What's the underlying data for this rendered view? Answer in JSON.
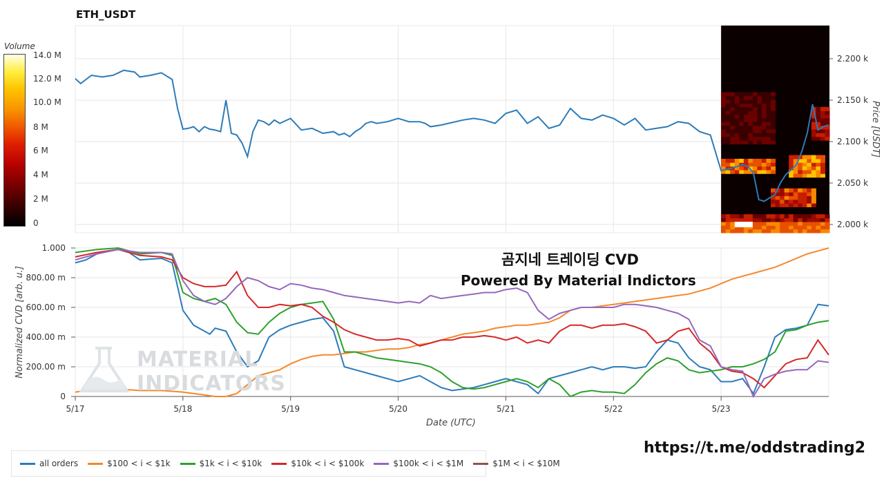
{
  "title": "ETH_USDT",
  "colorbar": {
    "title": "Volume",
    "ticks": [
      "14.0 M",
      "12.0 M",
      "10.0 M",
      "8 M",
      "6 M",
      "4 M",
      "2 M",
      "0"
    ]
  },
  "watermark": {
    "line1": "MATERIAL",
    "line2": "INDICATORS"
  },
  "branding": {
    "line1": "곰지네 트레이딩 CVD",
    "line2": "Powered By Material Indictors"
  },
  "url": "https://t.me/oddstrading2",
  "chart_data": [
    {
      "type": "line",
      "title": "ETH_USDT",
      "ylabel": "Price [USDT]",
      "ylim": [
        1990,
        2240
      ],
      "yticks": [
        2000,
        2050,
        2100,
        2150,
        2200
      ],
      "ytick_labels": [
        "2.000 k",
        "2.050 k",
        "2.100 k",
        "2.150 k",
        "2.200 k"
      ],
      "xlim": [
        0,
        7
      ],
      "grid": true,
      "heatmap": {
        "type": "heatmap",
        "x_start": 6.0,
        "x_end": 7.0,
        "colorscale": "hot",
        "zlim": [
          0,
          14000000
        ]
      },
      "series": [
        {
          "name": "price",
          "color": "#2b7bb9",
          "x": [
            0,
            0.05,
            0.15,
            0.25,
            0.35,
            0.45,
            0.55,
            0.6,
            0.7,
            0.8,
            0.9,
            0.95,
            1.0,
            1.05,
            1.1,
            1.15,
            1.2,
            1.25,
            1.3,
            1.35,
            1.4,
            1.45,
            1.5,
            1.55,
            1.6,
            1.65,
            1.7,
            1.75,
            1.8,
            1.85,
            1.9,
            1.95,
            2.0,
            2.1,
            2.2,
            2.3,
            2.4,
            2.45,
            2.5,
            2.55,
            2.6,
            2.65,
            2.7,
            2.75,
            2.8,
            2.9,
            3.0,
            3.1,
            3.2,
            3.25,
            3.3,
            3.4,
            3.5,
            3.6,
            3.7,
            3.8,
            3.9,
            4.0,
            4.1,
            4.2,
            4.3,
            4.4,
            4.5,
            4.6,
            4.7,
            4.8,
            4.9,
            5.0,
            5.1,
            5.2,
            5.3,
            5.4,
            5.5,
            5.6,
            5.7,
            5.8,
            5.9,
            6.0,
            6.1,
            6.2,
            6.25,
            6.3,
            6.35,
            6.4,
            6.45,
            6.5,
            6.55,
            6.6,
            6.65,
            6.7,
            6.75,
            6.8,
            6.85,
            6.9,
            6.95,
            7.0
          ],
          "y": [
            2176,
            2170,
            2180,
            2178,
            2180,
            2186,
            2184,
            2178,
            2180,
            2183,
            2175,
            2140,
            2115,
            2116,
            2118,
            2112,
            2118,
            2115,
            2114,
            2112,
            2150,
            2110,
            2108,
            2098,
            2082,
            2112,
            2126,
            2124,
            2120,
            2126,
            2122,
            2125,
            2128,
            2114,
            2116,
            2110,
            2112,
            2108,
            2110,
            2106,
            2112,
            2116,
            2122,
            2124,
            2122,
            2124,
            2128,
            2124,
            2124,
            2122,
            2118,
            2120,
            2123,
            2126,
            2128,
            2126,
            2122,
            2134,
            2138,
            2122,
            2130,
            2116,
            2120,
            2140,
            2128,
            2126,
            2132,
            2128,
            2120,
            2128,
            2114,
            2116,
            2118,
            2124,
            2122,
            2112,
            2108,
            2065,
            2068,
            2072,
            2070,
            2062,
            2030,
            2028,
            2032,
            2036,
            2050,
            2060,
            2066,
            2072,
            2088,
            2110,
            2145,
            2114,
            2118,
            2120
          ]
        }
      ]
    },
    {
      "type": "line",
      "xlabel": "Date (UTC)",
      "ylabel": "Normalized CVD [arb. u.]",
      "ylim": [
        0,
        1
      ],
      "yticks": [
        0,
        0.2,
        0.4,
        0.6,
        0.8,
        1.0
      ],
      "ytick_labels": [
        "0",
        "200.00 m",
        "400.00 m",
        "600.00 m",
        "800.00 m",
        "1.000"
      ],
      "xlim": [
        0,
        7
      ],
      "categories": [
        "5/17",
        "5/18",
        "5/19",
        "5/20",
        "5/21",
        "5/22",
        "5/23"
      ],
      "grid": true,
      "legend": "bottom",
      "series": [
        {
          "name": "all orders",
          "color": "#2b7bb9",
          "x": [
            0,
            0.1,
            0.2,
            0.3,
            0.4,
            0.5,
            0.6,
            0.8,
            0.9,
            1.0,
            1.1,
            1.2,
            1.25,
            1.3,
            1.4,
            1.5,
            1.6,
            1.7,
            1.8,
            1.9,
            2.0,
            2.1,
            2.2,
            2.3,
            2.4,
            2.5,
            2.6,
            2.7,
            2.8,
            2.9,
            3.0,
            3.1,
            3.2,
            3.3,
            3.4,
            3.5,
            3.6,
            3.7,
            3.8,
            3.9,
            4.0,
            4.1,
            4.2,
            4.3,
            4.4,
            4.5,
            4.6,
            4.7,
            4.8,
            4.9,
            5.0,
            5.1,
            5.2,
            5.3,
            5.4,
            5.5,
            5.6,
            5.7,
            5.8,
            5.9,
            6.0,
            6.1,
            6.2,
            6.3,
            6.4,
            6.5,
            6.6,
            6.7,
            6.8,
            6.9,
            7.0
          ],
          "y": [
            0.9,
            0.92,
            0.96,
            0.98,
            0.99,
            0.97,
            0.92,
            0.93,
            0.9,
            0.58,
            0.48,
            0.44,
            0.42,
            0.46,
            0.44,
            0.3,
            0.2,
            0.24,
            0.4,
            0.45,
            0.48,
            0.5,
            0.52,
            0.53,
            0.44,
            0.2,
            0.18,
            0.16,
            0.14,
            0.12,
            0.1,
            0.12,
            0.14,
            0.1,
            0.06,
            0.04,
            0.05,
            0.06,
            0.08,
            0.1,
            0.12,
            0.1,
            0.08,
            0.02,
            0.12,
            0.14,
            0.16,
            0.18,
            0.2,
            0.18,
            0.2,
            0.2,
            0.19,
            0.2,
            0.3,
            0.38,
            0.36,
            0.26,
            0.2,
            0.18,
            0.1,
            0.1,
            0.12,
            0.02,
            0.2,
            0.4,
            0.45,
            0.46,
            0.48,
            0.62,
            0.61
          ]
        },
        {
          "name": "$100 < i < $1k",
          "color": "#f5872a",
          "x": [
            0,
            0.2,
            0.4,
            0.6,
            0.8,
            1.0,
            1.1,
            1.2,
            1.3,
            1.4,
            1.5,
            1.6,
            1.7,
            1.8,
            1.9,
            2.0,
            2.1,
            2.2,
            2.3,
            2.4,
            2.5,
            2.6,
            2.7,
            2.8,
            2.9,
            3.0,
            3.1,
            3.2,
            3.3,
            3.4,
            3.5,
            3.6,
            3.7,
            3.8,
            3.9,
            4.0,
            4.1,
            4.2,
            4.3,
            4.4,
            4.5,
            4.6,
            4.7,
            4.8,
            4.9,
            5.0,
            5.1,
            5.2,
            5.3,
            5.4,
            5.5,
            5.6,
            5.7,
            5.8,
            5.9,
            6.0,
            6.1,
            6.2,
            6.3,
            6.4,
            6.5,
            6.6,
            6.7,
            6.8,
            6.9,
            7.0
          ],
          "y": [
            0.03,
            0.05,
            0.05,
            0.04,
            0.04,
            0.03,
            0.02,
            0.01,
            0.0,
            0.0,
            0.02,
            0.08,
            0.14,
            0.16,
            0.18,
            0.22,
            0.25,
            0.27,
            0.28,
            0.28,
            0.29,
            0.3,
            0.3,
            0.31,
            0.32,
            0.32,
            0.33,
            0.35,
            0.36,
            0.38,
            0.4,
            0.42,
            0.43,
            0.44,
            0.46,
            0.47,
            0.48,
            0.48,
            0.49,
            0.5,
            0.53,
            0.58,
            0.6,
            0.6,
            0.61,
            0.62,
            0.63,
            0.64,
            0.65,
            0.66,
            0.67,
            0.68,
            0.69,
            0.71,
            0.73,
            0.76,
            0.79,
            0.81,
            0.83,
            0.85,
            0.87,
            0.9,
            0.93,
            0.96,
            0.98,
            1.0
          ]
        },
        {
          "name": "$1k < i < $10k",
          "color": "#2ca02c",
          "x": [
            0,
            0.2,
            0.4,
            0.6,
            0.8,
            0.9,
            1.0,
            1.1,
            1.2,
            1.3,
            1.4,
            1.5,
            1.6,
            1.7,
            1.8,
            1.9,
            2.0,
            2.1,
            2.2,
            2.3,
            2.4,
            2.5,
            2.6,
            2.7,
            2.8,
            2.9,
            3.0,
            3.1,
            3.2,
            3.3,
            3.4,
            3.5,
            3.6,
            3.7,
            3.8,
            3.9,
            4.0,
            4.1,
            4.2,
            4.3,
            4.4,
            4.5,
            4.6,
            4.7,
            4.8,
            4.9,
            5.0,
            5.1,
            5.2,
            5.3,
            5.4,
            5.5,
            5.6,
            5.7,
            5.8,
            5.9,
            6.0,
            6.1,
            6.2,
            6.3,
            6.4,
            6.5,
            6.6,
            6.7,
            6.8,
            6.9,
            7.0
          ],
          "y": [
            0.97,
            0.99,
            1.0,
            0.96,
            0.97,
            0.95,
            0.7,
            0.66,
            0.64,
            0.66,
            0.62,
            0.5,
            0.43,
            0.42,
            0.5,
            0.56,
            0.6,
            0.62,
            0.63,
            0.64,
            0.52,
            0.3,
            0.3,
            0.28,
            0.26,
            0.25,
            0.24,
            0.23,
            0.22,
            0.2,
            0.16,
            0.1,
            0.06,
            0.05,
            0.06,
            0.08,
            0.1,
            0.12,
            0.1,
            0.06,
            0.12,
            0.08,
            0.0,
            0.03,
            0.04,
            0.03,
            0.03,
            0.02,
            0.08,
            0.16,
            0.22,
            0.26,
            0.24,
            0.18,
            0.16,
            0.17,
            0.18,
            0.2,
            0.2,
            0.22,
            0.25,
            0.3,
            0.44,
            0.45,
            0.48,
            0.5,
            0.51
          ]
        },
        {
          "name": "$10k < i < $100k",
          "color": "#d62728",
          "x": [
            0,
            0.2,
            0.4,
            0.6,
            0.8,
            0.9,
            1.0,
            1.1,
            1.2,
            1.3,
            1.4,
            1.5,
            1.6,
            1.7,
            1.8,
            1.9,
            2.0,
            2.1,
            2.2,
            2.3,
            2.4,
            2.5,
            2.6,
            2.7,
            2.8,
            2.9,
            3.0,
            3.1,
            3.2,
            3.3,
            3.4,
            3.5,
            3.6,
            3.7,
            3.8,
            3.9,
            4.0,
            4.1,
            4.2,
            4.3,
            4.4,
            4.5,
            4.6,
            4.7,
            4.8,
            4.9,
            5.0,
            5.1,
            5.2,
            5.3,
            5.4,
            5.5,
            5.6,
            5.7,
            5.8,
            5.9,
            6.0,
            6.1,
            6.2,
            6.3,
            6.4,
            6.5,
            6.6,
            6.7,
            6.8,
            6.9,
            7.0
          ],
          "y": [
            0.94,
            0.97,
            0.99,
            0.95,
            0.94,
            0.92,
            0.8,
            0.76,
            0.74,
            0.74,
            0.75,
            0.84,
            0.68,
            0.6,
            0.6,
            0.62,
            0.61,
            0.62,
            0.6,
            0.54,
            0.5,
            0.45,
            0.42,
            0.4,
            0.38,
            0.38,
            0.39,
            0.38,
            0.34,
            0.36,
            0.38,
            0.38,
            0.4,
            0.4,
            0.41,
            0.4,
            0.38,
            0.4,
            0.36,
            0.38,
            0.36,
            0.44,
            0.48,
            0.48,
            0.46,
            0.48,
            0.48,
            0.49,
            0.47,
            0.44,
            0.36,
            0.38,
            0.44,
            0.46,
            0.36,
            0.3,
            0.2,
            0.17,
            0.16,
            0.12,
            0.06,
            0.14,
            0.22,
            0.25,
            0.26,
            0.38,
            0.28
          ]
        },
        {
          "name": "$100k < i < $1M",
          "color": "#9467bd",
          "x": [
            0,
            0.2,
            0.4,
            0.6,
            0.8,
            0.9,
            1.0,
            1.1,
            1.2,
            1.3,
            1.4,
            1.5,
            1.6,
            1.7,
            1.8,
            1.9,
            2.0,
            2.1,
            2.2,
            2.3,
            2.4,
            2.5,
            2.6,
            2.7,
            2.8,
            2.9,
            3.0,
            3.1,
            3.2,
            3.3,
            3.4,
            3.5,
            3.6,
            3.7,
            3.8,
            3.9,
            4.0,
            4.1,
            4.2,
            4.3,
            4.4,
            4.5,
            4.6,
            4.7,
            4.8,
            4.9,
            5.0,
            5.1,
            5.2,
            5.3,
            5.4,
            5.5,
            5.6,
            5.7,
            5.8,
            5.9,
            6.0,
            6.1,
            6.2,
            6.3,
            6.4,
            6.5,
            6.6,
            6.7,
            6.8,
            6.9,
            7.0
          ],
          "y": [
            0.92,
            0.96,
            0.99,
            0.97,
            0.97,
            0.96,
            0.78,
            0.68,
            0.64,
            0.62,
            0.66,
            0.74,
            0.8,
            0.78,
            0.74,
            0.72,
            0.76,
            0.75,
            0.73,
            0.72,
            0.7,
            0.68,
            0.67,
            0.66,
            0.65,
            0.64,
            0.63,
            0.64,
            0.63,
            0.68,
            0.66,
            0.67,
            0.68,
            0.69,
            0.7,
            0.7,
            0.72,
            0.73,
            0.7,
            0.58,
            0.52,
            0.56,
            0.58,
            0.6,
            0.6,
            0.6,
            0.6,
            0.62,
            0.62,
            0.61,
            0.6,
            0.58,
            0.56,
            0.52,
            0.38,
            0.34,
            0.2,
            0.18,
            0.17,
            0.0,
            0.12,
            0.15,
            0.17,
            0.18,
            0.18,
            0.24,
            0.23
          ]
        },
        {
          "name": "$1M < i < $10M",
          "color": "#8c564b",
          "x": [],
          "y": []
        }
      ]
    }
  ]
}
